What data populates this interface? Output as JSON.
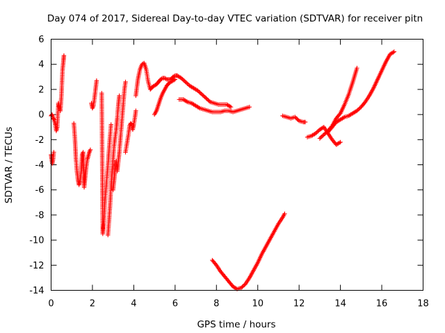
{
  "chart_data": {
    "type": "scatter",
    "title": "Day 074 of 2017, Sidereal Day-to-day VTEC variation (SDTVAR) for receiver pitn",
    "xlabel": "GPS time / hours",
    "ylabel": "SDTVAR / TECUs",
    "xlim": [
      0,
      18
    ],
    "ylim": [
      -14,
      6
    ],
    "xticks": [
      0,
      2,
      4,
      6,
      8,
      10,
      12,
      14,
      16,
      18
    ],
    "yticks": [
      -14,
      -12,
      -10,
      -8,
      -6,
      -4,
      -2,
      0,
      2,
      4,
      6
    ],
    "grid": false,
    "marker": "+",
    "color": "#ff0000",
    "series": [
      {
        "name": "s01",
        "x": [
          0.0,
          0.05,
          0.1,
          0.15,
          0.2,
          0.25,
          0.3,
          0.35,
          0.4,
          0.45,
          0.5,
          0.55,
          0.6,
          0.62
        ],
        "y": [
          -0.1,
          0.0,
          -0.3,
          -0.4,
          -0.8,
          -1.3,
          -1.0,
          0.9,
          0.5,
          0.3,
          1.5,
          3.5,
          4.3,
          4.7
        ]
      },
      {
        "name": "s02",
        "x": [
          0.0,
          0.03,
          0.06,
          0.1,
          0.13
        ],
        "y": [
          -3.2,
          -3.6,
          -3.9,
          -3.5,
          -3.0
        ]
      },
      {
        "name": "s03",
        "x": [
          1.1,
          1.15,
          1.2,
          1.25,
          1.3,
          1.35,
          1.4,
          1.45,
          1.5,
          1.55,
          1.6,
          1.65,
          1.7,
          1.75,
          1.8,
          1.85,
          1.9
        ],
        "y": [
          -0.7,
          -1.8,
          -3.5,
          -4.5,
          -5.2,
          -5.6,
          -5.3,
          -4.6,
          -3.2,
          -3.0,
          -5.8,
          -5.0,
          -4.2,
          -3.6,
          -3.3,
          -3.0,
          -2.8
        ]
      },
      {
        "name": "s04",
        "x": [
          1.95,
          2.0,
          2.05,
          2.1,
          2.15,
          2.2
        ],
        "y": [
          0.9,
          0.5,
          0.7,
          1.3,
          2.0,
          2.7
        ]
      },
      {
        "name": "s05",
        "x": [
          2.45,
          2.5,
          2.55,
          2.6,
          2.65,
          2.7,
          2.75,
          2.8,
          2.85,
          2.9
        ],
        "y": [
          1.7,
          -9.5,
          -8.6,
          -7.0,
          -6.0,
          -5.0,
          -4.0,
          -2.9,
          -1.8,
          -0.8
        ]
      },
      {
        "name": "s06",
        "x": [
          2.75,
          2.8,
          2.85,
          2.9,
          2.95,
          3.0,
          3.05,
          3.1,
          3.15,
          3.2,
          3.25,
          3.3
        ],
        "y": [
          -9.6,
          -8.5,
          -7.3,
          -5.8,
          -4.5,
          -3.5,
          -2.5,
          -1.8,
          -1.2,
          -0.3,
          0.7,
          1.5
        ]
      },
      {
        "name": "s07",
        "x": [
          3.0,
          3.05,
          3.1,
          3.15,
          3.2,
          3.25,
          3.3,
          3.35,
          3.4,
          3.45,
          3.5,
          3.55,
          3.6
        ],
        "y": [
          -6.0,
          -5.2,
          -4.3,
          -3.7,
          -4.5,
          -3.8,
          -3.0,
          -2.0,
          -1.0,
          0.0,
          1.0,
          2.0,
          2.6
        ]
      },
      {
        "name": "s08",
        "x": [
          3.6,
          3.65,
          3.7,
          3.75,
          3.8,
          3.85,
          3.9,
          3.95,
          4.0,
          4.05,
          4.1
        ],
        "y": [
          -3.0,
          -2.5,
          -2.0,
          -1.5,
          -0.9,
          -0.7,
          -0.8,
          -1.2,
          -0.8,
          -0.3,
          0.3
        ]
      },
      {
        "name": "s09",
        "x": [
          4.1,
          4.2,
          4.3,
          4.4,
          4.5,
          4.6,
          4.7,
          4.8,
          4.9,
          5.0,
          5.1,
          5.2,
          5.3,
          5.4,
          5.5,
          5.6,
          5.7,
          5.8,
          5.9,
          6.0,
          6.1
        ],
        "y": [
          1.5,
          2.8,
          3.6,
          4.0,
          4.1,
          3.6,
          2.6,
          2.0,
          2.2,
          2.3,
          2.4,
          2.6,
          2.8,
          2.9,
          2.9,
          2.8,
          2.8,
          2.8,
          3.0,
          3.1,
          3.1
        ]
      },
      {
        "name": "s10",
        "x": [
          5.0,
          5.1,
          5.2,
          5.3,
          5.4,
          5.5,
          5.6,
          5.7,
          5.8,
          5.9,
          6.0
        ],
        "y": [
          0.0,
          0.3,
          0.8,
          1.3,
          1.7,
          2.0,
          2.3,
          2.5,
          2.6,
          2.7,
          2.8
        ]
      },
      {
        "name": "s11",
        "x": [
          6.1,
          6.3,
          6.5,
          6.7,
          6.9,
          7.1,
          7.3,
          7.5,
          7.7,
          7.9,
          8.1,
          8.3,
          8.5,
          8.7
        ],
        "y": [
          3.1,
          2.9,
          2.6,
          2.3,
          2.1,
          1.9,
          1.6,
          1.3,
          1.0,
          0.9,
          0.8,
          0.8,
          0.8,
          0.6
        ]
      },
      {
        "name": "s12",
        "x": [
          6.2,
          6.4,
          6.6,
          6.8,
          7.0,
          7.2,
          7.4,
          7.6,
          7.8,
          8.0,
          8.2,
          8.4,
          8.6,
          8.8,
          9.0,
          9.2,
          9.4,
          9.6
        ],
        "y": [
          1.2,
          1.2,
          1.0,
          0.9,
          0.7,
          0.5,
          0.4,
          0.3,
          0.2,
          0.2,
          0.2,
          0.3,
          0.3,
          0.2,
          0.3,
          0.4,
          0.5,
          0.6
        ]
      },
      {
        "name": "s13",
        "x": [
          7.8,
          8.0,
          8.2,
          8.4,
          8.6,
          8.8,
          9.0,
          9.2,
          9.4,
          9.6,
          9.8,
          10.0,
          10.2,
          10.4,
          10.6,
          10.8,
          11.0,
          11.2,
          11.3
        ],
        "y": [
          -11.6,
          -12.0,
          -12.5,
          -12.9,
          -13.3,
          -13.7,
          -13.9,
          -13.8,
          -13.5,
          -13.0,
          -12.4,
          -11.8,
          -11.1,
          -10.5,
          -9.9,
          -9.3,
          -8.7,
          -8.2,
          -7.9
        ]
      },
      {
        "name": "s14",
        "x": [
          11.2,
          11.4,
          11.6,
          11.8,
          12.0,
          12.2,
          12.3
        ],
        "y": [
          -0.1,
          -0.2,
          -0.3,
          -0.2,
          -0.5,
          -0.6,
          -0.6
        ]
      },
      {
        "name": "s15",
        "x": [
          12.4,
          12.6,
          12.8,
          13.0,
          13.2,
          13.4,
          13.6,
          13.8,
          14.0
        ],
        "y": [
          -1.8,
          -1.7,
          -1.5,
          -1.2,
          -1.0,
          -1.5,
          -2.0,
          -2.4,
          -2.2
        ]
      },
      {
        "name": "s16",
        "x": [
          13.0,
          13.2,
          13.4,
          13.6,
          13.8,
          14.0,
          14.2,
          14.4,
          14.6,
          14.8
        ],
        "y": [
          -1.9,
          -1.6,
          -1.3,
          -0.9,
          -0.3,
          0.1,
          0.8,
          1.6,
          2.6,
          3.7
        ]
      },
      {
        "name": "s17",
        "x": [
          13.4,
          13.6,
          13.8,
          14.0,
          14.2,
          14.4,
          14.6,
          14.8,
          15.0,
          15.2,
          15.4,
          15.6,
          15.8,
          16.0,
          16.2,
          16.4,
          16.6
        ],
        "y": [
          -1.4,
          -1.0,
          -0.6,
          -0.4,
          -0.2,
          -0.1,
          0.1,
          0.3,
          0.6,
          1.0,
          1.5,
          2.1,
          2.8,
          3.5,
          4.2,
          4.8,
          5.0
        ]
      }
    ]
  }
}
